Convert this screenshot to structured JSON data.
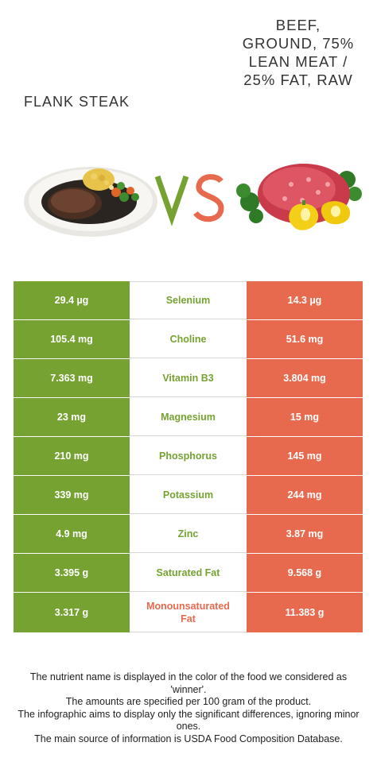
{
  "left_food": {
    "name": "Flank steak"
  },
  "right_food": {
    "name": "Beef, ground, 75% lean meat / 25% fat, raw"
  },
  "vs_label": "VS",
  "colors": {
    "left": "#76a232",
    "right": "#e76a4e",
    "divider": "#d8d8d8"
  },
  "rows": [
    {
      "nutrient": "Selenium",
      "left": "29.4 µg",
      "right": "14.3 µg",
      "winner": "left"
    },
    {
      "nutrient": "Choline",
      "left": "105.4 mg",
      "right": "51.6 mg",
      "winner": "left"
    },
    {
      "nutrient": "Vitamin B3",
      "left": "7.363 mg",
      "right": "3.804 mg",
      "winner": "left"
    },
    {
      "nutrient": "Magnesium",
      "left": "23 mg",
      "right": "15 mg",
      "winner": "left"
    },
    {
      "nutrient": "Phosphorus",
      "left": "210 mg",
      "right": "145 mg",
      "winner": "left"
    },
    {
      "nutrient": "Potassium",
      "left": "339 mg",
      "right": "244 mg",
      "winner": "left"
    },
    {
      "nutrient": "Zinc",
      "left": "4.9 mg",
      "right": "3.87 mg",
      "winner": "left"
    },
    {
      "nutrient": "Saturated Fat",
      "left": "3.395 g",
      "right": "9.568 g",
      "winner": "left"
    },
    {
      "nutrient": "Monounsaturated Fat",
      "left": "3.317 g",
      "right": "11.383 g",
      "winner": "right"
    }
  ],
  "footer": {
    "line1": "The nutrient name is displayed in the color of the food we considered as 'winner'.",
    "line2": "The amounts are specified per 100 gram of the product.",
    "line3": "The infographic aims to display only the significant differences, ignoring minor ones.",
    "line4": "The main source of information is USDA Food Composition Database."
  }
}
